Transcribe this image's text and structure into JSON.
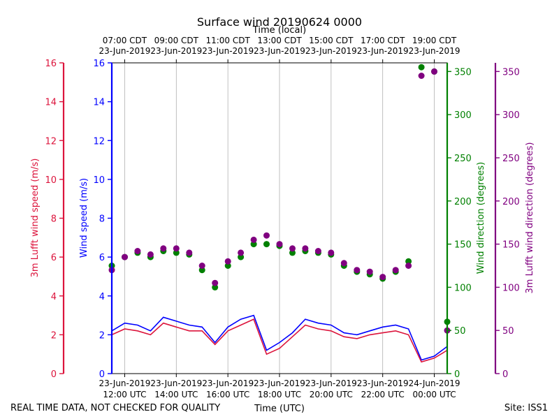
{
  "chart_data": {
    "type": "scatter",
    "title": "Surface wind 20190624 0000",
    "top_axis_title": "Time (local)",
    "xlabel": "Time (UTC)",
    "x_range_hours_utc": [
      11.5,
      24.5
    ],
    "x_ticks": [
      {
        "hour": 12,
        "utc_date": "23-Jun-2019",
        "utc_time": "12:00 UTC",
        "local_time": "07:00 CDT",
        "local_date": "23-Jun-2019"
      },
      {
        "hour": 14,
        "utc_date": "23-Jun-2019",
        "utc_time": "14:00 UTC",
        "local_time": "09:00 CDT",
        "local_date": "23-Jun-2019"
      },
      {
        "hour": 16,
        "utc_date": "23-Jun-2019",
        "utc_time": "16:00 UTC",
        "local_time": "11:00 CDT",
        "local_date": "23-Jun-2019"
      },
      {
        "hour": 18,
        "utc_date": "23-Jun-2019",
        "utc_time": "18:00 UTC",
        "local_time": "13:00 CDT",
        "local_date": "23-Jun-2019"
      },
      {
        "hour": 20,
        "utc_date": "23-Jun-2019",
        "utc_time": "20:00 UTC",
        "local_time": "15:00 CDT",
        "local_date": "23-Jun-2019"
      },
      {
        "hour": 22,
        "utc_date": "23-Jun-2019",
        "utc_time": "22:00 UTC",
        "local_time": "17:00 CDT",
        "local_date": "23-Jun-2019"
      },
      {
        "hour": 24,
        "utc_date": "24-Jun-2019",
        "utc_time": "00:00 UTC",
        "local_time": "19:00 CDT",
        "local_date": "23-Jun-2019"
      }
    ],
    "axes": {
      "lufft_speed": {
        "label": "3m Lufft wind speed (m/s)",
        "range": [
          0,
          16
        ],
        "ticks": [
          0,
          2,
          4,
          6,
          8,
          10,
          12,
          14,
          16
        ],
        "color": "#dc143c"
      },
      "speed": {
        "label": "Wind speed (m/s)",
        "range": [
          0,
          16
        ],
        "ticks": [
          0,
          2,
          4,
          6,
          8,
          10,
          12,
          14,
          16
        ],
        "color": "#0000ff"
      },
      "direction": {
        "label": "Wind direction (degrees)",
        "range": [
          0,
          360
        ],
        "ticks": [
          0,
          50,
          100,
          150,
          200,
          250,
          300,
          350
        ],
        "color": "#008000"
      },
      "lufft_direction": {
        "label": "3m Lufft wind direction (degrees)",
        "range": [
          0,
          360
        ],
        "ticks": [
          0,
          50,
          100,
          150,
          200,
          250,
          300,
          350
        ],
        "color": "#800080"
      }
    },
    "series": [
      {
        "name": "Wind speed",
        "kind": "line",
        "axis": "speed",
        "color": "#0000ff",
        "x": [
          11.5,
          12.0,
          12.5,
          13.0,
          13.5,
          14.0,
          14.5,
          15.0,
          15.5,
          16.0,
          16.5,
          17.0,
          17.5,
          18.0,
          18.5,
          19.0,
          19.5,
          20.0,
          20.5,
          21.0,
          21.5,
          22.0,
          22.5,
          23.0,
          23.5,
          24.0,
          24.5
        ],
        "y": [
          2.2,
          2.6,
          2.5,
          2.2,
          2.9,
          2.7,
          2.5,
          2.4,
          1.6,
          2.4,
          2.8,
          3.0,
          1.2,
          1.6,
          2.1,
          2.8,
          2.6,
          2.5,
          2.1,
          2.0,
          2.2,
          2.4,
          2.5,
          2.3,
          0.7,
          0.9,
          1.4
        ]
      },
      {
        "name": "3m Lufft wind speed",
        "kind": "line",
        "axis": "lufft_speed",
        "color": "#dc143c",
        "x": [
          11.5,
          12.0,
          12.5,
          13.0,
          13.5,
          14.0,
          14.5,
          15.0,
          15.5,
          16.0,
          16.5,
          17.0,
          17.5,
          18.0,
          18.5,
          19.0,
          19.5,
          20.0,
          20.5,
          21.0,
          21.5,
          22.0,
          22.5,
          23.0,
          23.5,
          24.0,
          24.5
        ],
        "y": [
          2.0,
          2.3,
          2.2,
          2.0,
          2.6,
          2.4,
          2.2,
          2.2,
          1.5,
          2.2,
          2.5,
          2.8,
          1.0,
          1.3,
          1.9,
          2.5,
          2.3,
          2.2,
          1.9,
          1.8,
          2.0,
          2.1,
          2.2,
          2.0,
          0.6,
          0.8,
          1.2
        ]
      },
      {
        "name": "Wind direction",
        "kind": "scatter",
        "axis": "direction",
        "color": "#008000",
        "x": [
          11.5,
          12.0,
          12.5,
          13.0,
          13.5,
          14.0,
          14.5,
          15.0,
          15.5,
          16.0,
          16.5,
          17.0,
          17.5,
          18.0,
          18.5,
          19.0,
          19.5,
          20.0,
          20.5,
          21.0,
          21.5,
          22.0,
          22.5,
          23.0,
          23.5,
          24.0,
          24.5
        ],
        "y": [
          125,
          135,
          140,
          135,
          142,
          140,
          138,
          120,
          100,
          125,
          135,
          150,
          150,
          148,
          140,
          142,
          140,
          138,
          125,
          118,
          115,
          110,
          118,
          130,
          355,
          350,
          60
        ]
      },
      {
        "name": "3m Lufft wind direction",
        "kind": "scatter",
        "axis": "lufft_direction",
        "color": "#800080",
        "x": [
          11.5,
          12.0,
          12.5,
          13.0,
          13.5,
          14.0,
          14.5,
          15.0,
          15.5,
          16.0,
          16.5,
          17.0,
          17.5,
          18.0,
          18.5,
          19.0,
          19.5,
          20.0,
          20.5,
          21.0,
          21.5,
          22.0,
          22.5,
          23.0,
          23.5,
          24.0,
          24.5
        ],
        "y": [
          120,
          135,
          142,
          138,
          145,
          145,
          140,
          125,
          105,
          130,
          140,
          155,
          160,
          150,
          145,
          145,
          142,
          140,
          128,
          120,
          118,
          112,
          120,
          125,
          345,
          350,
          50
        ]
      }
    ],
    "notes": [
      {
        "text": "REAL TIME DATA, NOT CHECKED FOR QUALITY",
        "position": "bottom-left"
      },
      {
        "text": "Site: ISS1",
        "position": "bottom-right"
      }
    ]
  }
}
